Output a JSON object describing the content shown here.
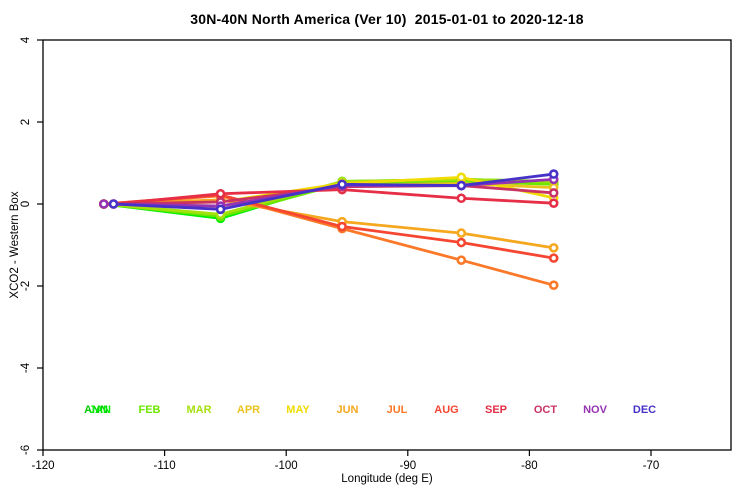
{
  "title": "30N-40N North America (Ver 10)  2015-01-01 to 2020-12-18",
  "chart_data": {
    "type": "line",
    "title": "30N-40N North America (Ver 10)  2015-01-01 to 2020-12-18",
    "xlabel": "Longitude (deg E)",
    "ylabel": "XCO2 - Western Box",
    "xlim": [
      -120,
      -63.4
    ],
    "ylim": [
      -6,
      4
    ],
    "x_ticks": [
      -120,
      -110,
      -100,
      -90,
      -80,
      -70
    ],
    "y_ticks": [
      -6,
      -4,
      -2,
      0,
      2,
      4
    ],
    "grid": false,
    "marker": "open-circle",
    "legend_position": "bottom-inside-row",
    "legend_overlap_note": "ANN and JAN labels overprint at the first legend slot",
    "series": [
      {
        "name": "ANN",
        "color": "#00C800",
        "x": [
          -115,
          -105.4,
          -95.4,
          -85.6,
          -78
        ],
        "y": [
          0,
          -0.32,
          0.52,
          0.57,
          0.5
        ]
      },
      {
        "name": "JAN",
        "color": "#00EE00",
        "x": [
          -115,
          -105.4,
          -95.4,
          -85.6,
          -78
        ],
        "y": [
          0,
          -0.35,
          0.55,
          0.6,
          0.55
        ]
      },
      {
        "name": "FEB",
        "color": "#6EE600",
        "x": [
          -115,
          -105.4,
          -95.4,
          -85.6,
          -78
        ],
        "y": [
          0,
          -0.3,
          0.5,
          0.55,
          0.48
        ]
      },
      {
        "name": "MAR",
        "color": "#A5E10E",
        "x": [
          -115,
          -105.4,
          -95.4,
          -85.6,
          -78
        ],
        "y": [
          0,
          -0.25,
          0.55,
          0.6,
          0.55
        ]
      },
      {
        "name": "APR",
        "color": "#EBC31E",
        "x": [
          -115,
          -105.4,
          -95.4,
          -85.6,
          -78
        ],
        "y": [
          0,
          -0.05,
          0.45,
          0.5,
          0.4
        ]
      },
      {
        "name": "MAY",
        "color": "#F0DC00",
        "x": [
          -115,
          -105.4,
          -95.4,
          -85.6,
          -78
        ],
        "y": [
          0,
          0.05,
          0.5,
          0.65,
          0.15
        ]
      },
      {
        "name": "JUN",
        "color": "#F5A81E",
        "x": [
          -115,
          -105.4,
          -95.4,
          -85.6,
          -78
        ],
        "y": [
          0,
          0.1,
          -0.43,
          -0.71,
          -1.07
        ]
      },
      {
        "name": "JUL",
        "color": "#FA7828",
        "x": [
          -115,
          -105.4,
          -95.4,
          -85.6,
          -78
        ],
        "y": [
          0,
          0.2,
          -0.6,
          -1.37,
          -1.98
        ]
      },
      {
        "name": "AUG",
        "color": "#F54632",
        "x": [
          -115,
          -105.4,
          -95.4,
          -85.6,
          -78
        ],
        "y": [
          0,
          0.22,
          -0.55,
          -0.94,
          -1.32
        ]
      },
      {
        "name": "SEP",
        "color": "#E62E46",
        "x": [
          -114.2,
          -105.4,
          -95.4,
          -85.6,
          -78
        ],
        "y": [
          0,
          0.25,
          0.35,
          0.14,
          0.02
        ]
      },
      {
        "name": "OCT",
        "color": "#C83264",
        "x": [
          -114.2,
          -105.4,
          -95.4,
          -85.6,
          -78
        ],
        "y": [
          0,
          0.05,
          0.42,
          0.45,
          0.27
        ]
      },
      {
        "name": "NOV",
        "color": "#9632B4",
        "x": [
          -115,
          -105.4,
          -95.4,
          -85.6,
          -78
        ],
        "y": [
          0,
          -0.05,
          0.45,
          0.45,
          0.6
        ]
      },
      {
        "name": "DEC",
        "color": "#4632C8",
        "x": [
          -114.2,
          -105.4,
          -95.4,
          -85.6,
          -78
        ],
        "y": [
          0,
          -0.13,
          0.48,
          0.45,
          0.73
        ]
      }
    ]
  }
}
